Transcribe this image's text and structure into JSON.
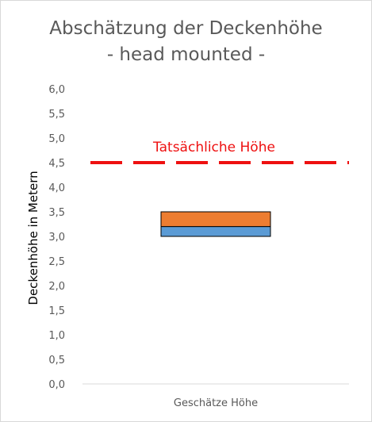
{
  "chart_data": {
    "type": "bar",
    "title_line1": "Abschätzung der Deckenhöhe",
    "title_line2": "- head mounted -",
    "ylabel": "Deckenhöhe in Metern",
    "categories": [
      "Geschätze Höhe"
    ],
    "ylim": [
      0,
      6
    ],
    "y_ticks": [
      "0,0",
      "0,5",
      "1,0",
      "1,5",
      "2,0",
      "2,5",
      "3,0",
      "3,5",
      "4,0",
      "4,5",
      "5,0",
      "5,5",
      "6,0"
    ],
    "y_tick_values": [
      0,
      0.5,
      1,
      1.5,
      2,
      2.5,
      3,
      3.5,
      4,
      4.5,
      5,
      5.5,
      6
    ],
    "stack": [
      {
        "from": 3.0,
        "to": 3.2,
        "color": "#5b9bd5"
      },
      {
        "from": 3.2,
        "to": 3.5,
        "color": "#ed7d31"
      }
    ],
    "reference_line": {
      "label": "Tatsächliche Höhe",
      "value": 4.5,
      "color": "#ee1010"
    },
    "grid": false
  }
}
